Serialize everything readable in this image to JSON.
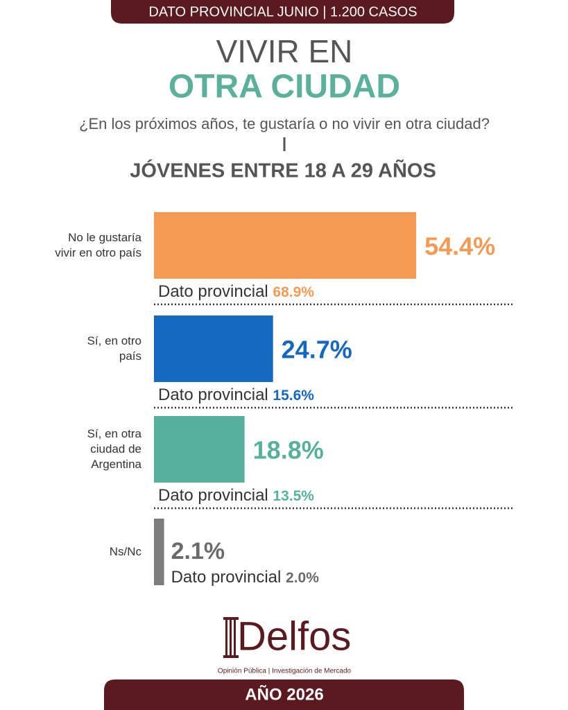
{
  "header": {
    "banner": "DATO PROVINCIAL JUNIO | 1.200 CASOS",
    "title_line1": "VIVIR EN",
    "title_line2": "OTRA CIUDAD",
    "question": "¿En los próximos años, te gustaría o no vivir en otra ciudad?",
    "subtitle": "JÓVENES ENTRE 18 A 29 AÑOS"
  },
  "chart_data": {
    "type": "bar",
    "orientation": "horizontal",
    "categories": [
      "No le gustaría\nvivir en otro país",
      "Sí, en otro\npaís",
      "Sí, en otra\nciudad de\nArgentina",
      "Ns/Nc"
    ],
    "values": [
      54.4,
      24.7,
      18.8,
      2.1
    ],
    "value_labels": [
      "54.4%",
      "24.7%",
      "18.8%",
      "2.1%"
    ],
    "colors": [
      "#f39a55",
      "#1468bf",
      "#57b09c",
      "#7d7d7d"
    ],
    "reference": {
      "label": "Dato provincial",
      "values": [
        68.9,
        15.6,
        13.5,
        2.0
      ],
      "value_labels": [
        "68.9%",
        "15.6%",
        "13.5%",
        "2.0%"
      ]
    }
  },
  "footer": {
    "brand": "Delfos",
    "tagline": "Opinión Pública | Investigación de Mercado",
    "year": "AÑO 2026"
  }
}
